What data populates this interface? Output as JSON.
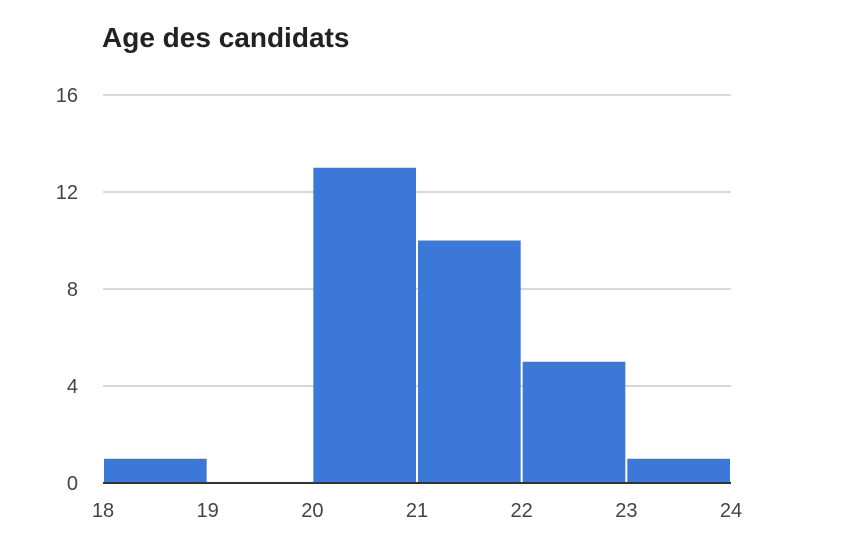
{
  "chart_data": {
    "type": "bar",
    "title": "Age des candidats",
    "xlabel": "",
    "ylabel": "",
    "x_ticks": [
      18,
      19,
      20,
      21,
      22,
      23,
      24
    ],
    "y_ticks": [
      0,
      4,
      8,
      12,
      16
    ],
    "xlim": [
      18,
      24
    ],
    "ylim": [
      0,
      16
    ],
    "bins": [
      {
        "from": 18,
        "to": 19,
        "count": 1
      },
      {
        "from": 19,
        "to": 20,
        "count": 0
      },
      {
        "from": 20,
        "to": 21,
        "count": 13
      },
      {
        "from": 21,
        "to": 22,
        "count": 10
      },
      {
        "from": 22,
        "to": 23,
        "count": 5
      },
      {
        "from": 23,
        "to": 24,
        "count": 1
      }
    ],
    "grid": true,
    "legend": "none",
    "colors": {
      "bar": "#3c78d8",
      "grid": "#cccccc",
      "axis": "#333333",
      "tick_label": "#444444"
    }
  }
}
